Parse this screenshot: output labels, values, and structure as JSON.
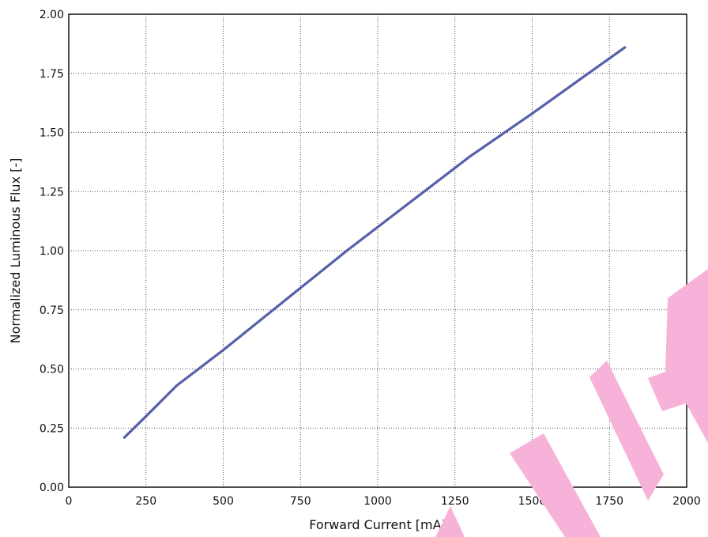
{
  "chart_data": {
    "type": "line",
    "title": "",
    "xlabel": "Forward Current [mA]",
    "ylabel": "Normalized Luminous Flux [-]",
    "xlim": [
      0,
      2000
    ],
    "ylim": [
      0,
      2.0
    ],
    "x_ticks": [
      0,
      250,
      500,
      750,
      1000,
      1250,
      1500,
      1750,
      2000
    ],
    "x_tick_labels": [
      "0",
      "250",
      "500",
      "750",
      "1000",
      "1250",
      "1500",
      "1750",
      "2000"
    ],
    "y_ticks": [
      0,
      0.25,
      0.5,
      0.75,
      1.0,
      1.25,
      1.5,
      1.75,
      2.0
    ],
    "y_tick_labels": [
      "0.00",
      "0.25",
      "0.50",
      "0.75",
      "1.00",
      "1.25",
      "1.50",
      "1.75",
      "2.00"
    ],
    "grid": true,
    "legend": "none",
    "series": [
      {
        "color": "#5560a8",
        "x": [
          180,
          250,
          350,
          500,
          700,
          900,
          1000,
          1150,
          1300,
          1500,
          1650,
          1800
        ],
        "y": [
          0.21,
          0.3,
          0.43,
          0.58,
          0.79,
          1.0,
          1.1,
          1.25,
          1.4,
          1.58,
          1.72,
          1.86
        ]
      }
    ]
  },
  "watermark": {
    "text": "NAP",
    "color": "#f7b2d9"
  }
}
